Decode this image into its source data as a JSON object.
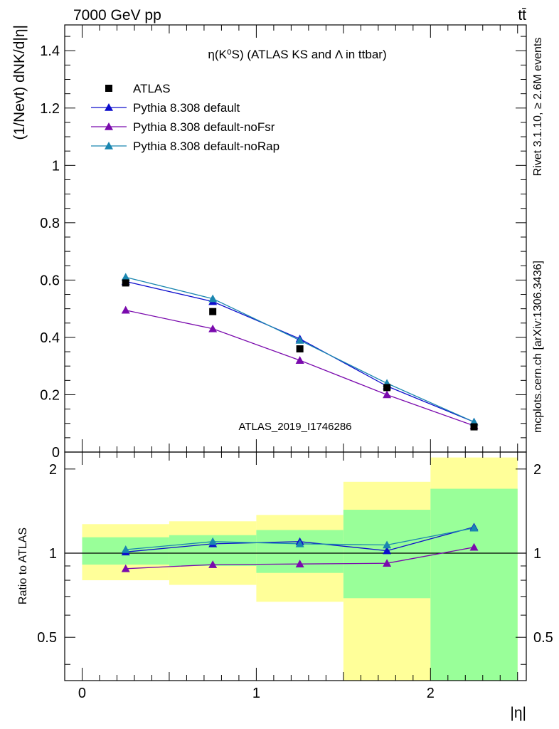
{
  "header": {
    "energy_label": "7000 GeV pp",
    "process_label": "tt̄"
  },
  "side": {
    "rivet_label": "Rivet 3.1.10, ≥ 2.6M events",
    "mcplots_label": "mcplots.cern.ch [arXiv:1306.3436]"
  },
  "colors": {
    "atlas": "#000000",
    "default": "#0d0dcc",
    "noFsr": "#7a0aad",
    "noRap": "#1a86b0",
    "band_yellow": "#ffff99",
    "band_green": "#99ff99"
  },
  "chart_data": [
    {
      "type": "line",
      "title": "η(K⁰S) (ATLAS KS and Λ in ttbar)",
      "ylabel": "(1/Nevt) dNK/d|η|",
      "xlim": [
        -0.1,
        2.55
      ],
      "ylim": [
        0,
        1.49
      ],
      "y_ticks": [
        0,
        0.2,
        0.4,
        0.6,
        0.8,
        1,
        1.2,
        1.4
      ],
      "watermark": "ATLAS_2019_I1746286",
      "legend_position": "top-left",
      "x": [
        0.25,
        0.75,
        1.25,
        1.75,
        2.25
      ],
      "series": [
        {
          "name": "ATLAS",
          "key": "atlas",
          "marker": "square",
          "values": [
            0.59,
            0.49,
            0.36,
            0.225,
            0.088
          ]
        },
        {
          "name": "Pythia 8.308 default",
          "key": "default",
          "marker": "triangle",
          "values": [
            0.595,
            0.525,
            0.395,
            0.23,
            0.105
          ]
        },
        {
          "name": "Pythia 8.308 default-noFsr",
          "key": "noFsr",
          "marker": "triangle",
          "values": [
            0.495,
            0.43,
            0.32,
            0.2,
            0.092
          ]
        },
        {
          "name": "Pythia 8.308 default-noRap",
          "key": "noRap",
          "marker": "triangle",
          "values": [
            0.61,
            0.535,
            0.39,
            0.24,
            0.105
          ]
        }
      ]
    },
    {
      "type": "line",
      "ylabel": "Ratio to ATLAS",
      "xlabel": "|η|",
      "xlim": [
        -0.1,
        2.55
      ],
      "ylim": [
        0.35,
        2.3
      ],
      "scale": "log",
      "y_ticks": [
        0.5,
        1,
        2
      ],
      "x_ticks": [
        0,
        1,
        2
      ],
      "reference_line": 1,
      "bands": {
        "edges": [
          0,
          0.5,
          1.0,
          1.5,
          2.0,
          2.5
        ],
        "yellow": [
          [
            0.8,
            1.27
          ],
          [
            0.77,
            1.3
          ],
          [
            0.67,
            1.37
          ],
          [
            0.35,
            1.8
          ],
          [
            0.35,
            2.2
          ]
        ],
        "green": [
          [
            0.91,
            1.14
          ],
          [
            0.9,
            1.16
          ],
          [
            0.85,
            1.21
          ],
          [
            0.69,
            1.43
          ],
          [
            0.35,
            1.7
          ]
        ]
      },
      "x": [
        0.25,
        0.75,
        1.25,
        1.75,
        2.25
      ],
      "series": [
        {
          "key": "default",
          "values": [
            1.01,
            1.08,
            1.1,
            1.02,
            1.24
          ]
        },
        {
          "key": "noFsr",
          "values": [
            0.88,
            0.91,
            0.915,
            0.92,
            1.05
          ]
        },
        {
          "key": "noRap",
          "values": [
            1.03,
            1.1,
            1.08,
            1.07,
            1.23
          ]
        }
      ]
    }
  ]
}
